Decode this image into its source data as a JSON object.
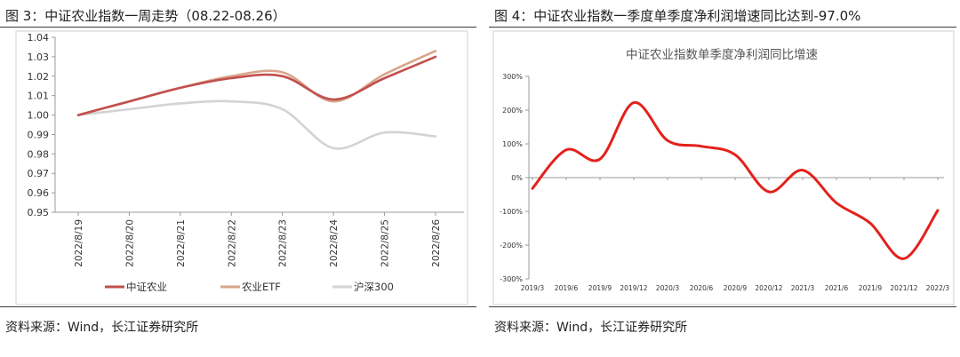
{
  "left": {
    "figure_title": "图 3：中证农业指数一周走势（08.22-08.26）",
    "source": "资料来源：Wind，长江证券研究所"
  },
  "right": {
    "figure_title": "图 4：中证农业指数一季度单季度净利润增速同比达到-97.0%",
    "source": "资料来源：Wind，长江证券研究所"
  },
  "colors": {
    "zhengzheng_agri": "#c0504d",
    "agri_etf": "#d9a58a",
    "hs300": "#d3d3d3",
    "profit_line": "#e4211c"
  },
  "chart_data": [
    {
      "type": "line",
      "title": "",
      "xlabel": "",
      "ylabel": "",
      "x": [
        "2022/8/19",
        "2022/8/20",
        "2022/8/21",
        "2022/8/22",
        "2022/8/23",
        "2022/8/24",
        "2022/8/25",
        "2022/8/26"
      ],
      "ylim": [
        0.95,
        1.04
      ],
      "yticks": [
        "0.95",
        "0.96",
        "0.97",
        "0.98",
        "0.99",
        "1.00",
        "1.01",
        "1.02",
        "1.03",
        "1.04"
      ],
      "series": [
        {
          "name": "中证农业",
          "color": "#c0504d",
          "values": [
            1.0,
            1.007,
            1.014,
            1.019,
            1.02,
            1.008,
            1.019,
            1.03
          ]
        },
        {
          "name": "农业ETF",
          "color": "#d9a58a",
          "values": [
            1.0,
            1.007,
            1.014,
            1.02,
            1.022,
            1.007,
            1.021,
            1.033
          ]
        },
        {
          "name": "沪深300",
          "color": "#d3d3d3",
          "values": [
            1.0,
            1.003,
            1.006,
            1.007,
            1.003,
            0.983,
            0.991,
            0.989
          ]
        }
      ],
      "grid": false,
      "legend": "bottom"
    },
    {
      "type": "line",
      "title": "中证农业指数单季度净利润同比增速",
      "xlabel": "",
      "ylabel": "",
      "x": [
        "2019/3",
        "2019/6",
        "2019/9",
        "2019/12",
        "2020/3",
        "2020/6",
        "2020/9",
        "2020/12",
        "2021/3",
        "2021/6",
        "2021/9",
        "2021/12",
        "2022/3"
      ],
      "ylim": [
        -300,
        300
      ],
      "yticks": [
        "-300%",
        "-200%",
        "-100%",
        "0%",
        "100%",
        "200%",
        "300%"
      ],
      "series": [
        {
          "color": "#e4211c",
          "values": [
            -32,
            82,
            55,
            222,
            110,
            93,
            68,
            -42,
            22,
            -75,
            -135,
            -240,
            -97
          ]
        }
      ],
      "grid": false,
      "legend": "none"
    }
  ]
}
